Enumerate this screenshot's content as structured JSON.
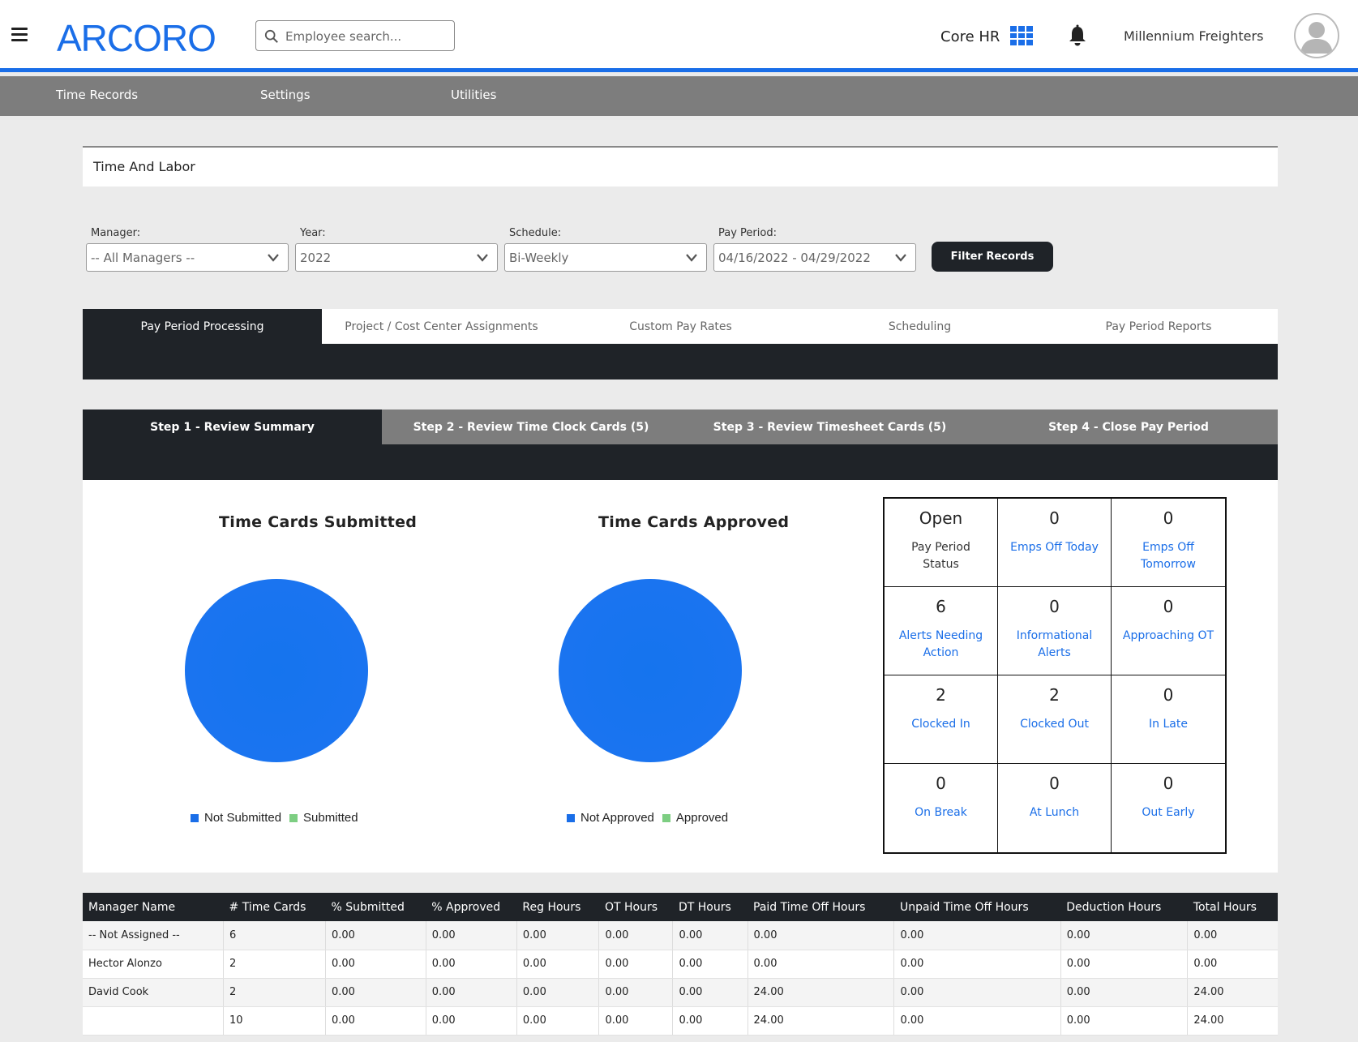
{
  "header": {
    "logo": "ARCORO",
    "search_placeholder": "Employee search...",
    "product": "Core HR",
    "company": "Millennium Freighters",
    "accent": "#1a6ee8"
  },
  "nav": [
    "Time Records",
    "Settings",
    "Utilities"
  ],
  "page_title": "Time And Labor",
  "filters": {
    "manager": {
      "label": "Manager:",
      "value": "-- All Managers --"
    },
    "year": {
      "label": "Year:",
      "value": "2022"
    },
    "schedule": {
      "label": "Schedule:",
      "value": "Bi-Weekly"
    },
    "pay_period": {
      "label": "Pay Period:",
      "value": "04/16/2022 - 04/29/2022"
    },
    "button": "Filter Records"
  },
  "main_tabs": [
    "Pay Period Processing",
    "Project / Cost Center Assignments",
    "Custom Pay Rates",
    "Scheduling",
    "Pay Period Reports"
  ],
  "step_tabs": [
    "Step 1 - Review Summary",
    "Step 2 - Review Time Clock Cards (5)",
    "Step 3 - Review Timesheet Cards (5)",
    "Step 4 - Close Pay Period"
  ],
  "charts": {
    "submitted": {
      "title": "Time Cards Submitted",
      "legend": [
        "Not Submitted",
        "Submitted"
      ],
      "colors": [
        "#1a6ee8",
        "#7dce82"
      ]
    },
    "approved": {
      "title": "Time Cards Approved",
      "legend": [
        "Not Approved",
        "Approved"
      ],
      "colors": [
        "#1a6ee8",
        "#7dce82"
      ]
    }
  },
  "stats": [
    {
      "value": "Open",
      "label": "Pay Period Status",
      "link": false
    },
    {
      "value": "0",
      "label": "Emps Off Today",
      "link": true
    },
    {
      "value": "0",
      "label": "Emps Off Tomorrow",
      "link": true
    },
    {
      "value": "6",
      "label": "Alerts Needing Action",
      "link": true
    },
    {
      "value": "0",
      "label": "Informational Alerts",
      "link": true
    },
    {
      "value": "0",
      "label": "Approaching OT",
      "link": true
    },
    {
      "value": "2",
      "label": "Clocked In",
      "link": true
    },
    {
      "value": "2",
      "label": "Clocked Out",
      "link": true
    },
    {
      "value": "0",
      "label": "In Late",
      "link": true
    },
    {
      "value": "0",
      "label": "On Break",
      "link": true
    },
    {
      "value": "0",
      "label": "At Lunch",
      "link": true
    },
    {
      "value": "0",
      "label": "Out Early",
      "link": true
    }
  ],
  "table": {
    "columns": [
      "Manager Name",
      "# Time Cards",
      "% Submitted",
      "% Approved",
      "Reg Hours",
      "OT Hours",
      "DT Hours",
      "Paid Time Off Hours",
      "Unpaid Time Off Hours",
      "Deduction Hours",
      "Total Hours"
    ],
    "rows": [
      [
        "-- Not Assigned --",
        "6",
        "0.00",
        "0.00",
        "0.00",
        "0.00",
        "0.00",
        "0.00",
        "0.00",
        "0.00",
        "0.00"
      ],
      [
        "Hector Alonzo",
        "2",
        "0.00",
        "0.00",
        "0.00",
        "0.00",
        "0.00",
        "0.00",
        "0.00",
        "0.00",
        "0.00"
      ],
      [
        "David Cook",
        "2",
        "0.00",
        "0.00",
        "0.00",
        "0.00",
        "0.00",
        "24.00",
        "0.00",
        "0.00",
        "24.00"
      ],
      [
        "",
        "10",
        "0.00",
        "0.00",
        "0.00",
        "0.00",
        "0.00",
        "24.00",
        "0.00",
        "0.00",
        "24.00"
      ]
    ]
  }
}
